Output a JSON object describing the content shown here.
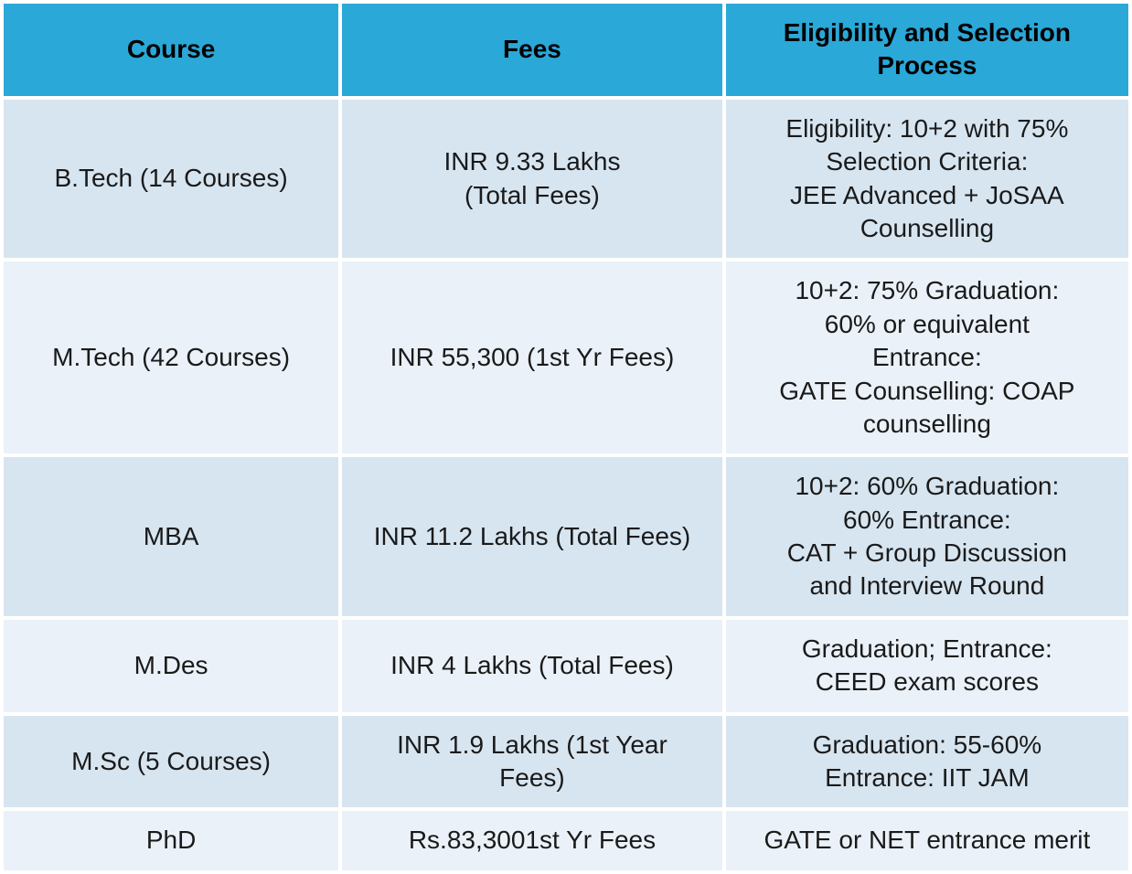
{
  "table": {
    "header_bg": "#2aa8d8",
    "row_even_bg": "#d7e5f0",
    "row_odd_bg": "#eaf1f8",
    "border_color": "#ffffff",
    "font_family": "Arial",
    "header_fontsize": 28,
    "cell_fontsize": 28,
    "columns": [
      {
        "key": "course",
        "label": "Course",
        "width_pct": 30
      },
      {
        "key": "fees",
        "label": "Fees",
        "width_pct": 34
      },
      {
        "key": "eligibility",
        "label": "Eligibility and Selection Process",
        "width_pct": 36
      }
    ],
    "rows": [
      {
        "course": "B.Tech (14 Courses)",
        "fees": "INR 9.33 Lakhs\n(Total Fees)",
        "eligibility": "Eligibility: 10+2 with 75%\nSelection Criteria:\nJEE Advanced + JoSAA\nCounselling"
      },
      {
        "course": "M.Tech (42 Courses)",
        "fees": "INR 55,300 (1st Yr Fees)",
        "eligibility": "10+2: 75% Graduation:\n60% or equivalent\nEntrance:\nGATE Counselling: COAP\ncounselling"
      },
      {
        "course": "MBA",
        "fees": "INR 11.2 Lakhs (Total Fees)",
        "eligibility": "10+2: 60% Graduation:\n60% Entrance:\nCAT + Group Discussion\nand Interview Round"
      },
      {
        "course": "M.Des",
        "fees": "INR 4 Lakhs (Total Fees)",
        "eligibility": "Graduation; Entrance:\nCEED exam scores"
      },
      {
        "course": "M.Sc (5 Courses)",
        "fees": "INR 1.9 Lakhs (1st Year\nFees)",
        "eligibility": "Graduation: 55-60%\nEntrance: IIT JAM"
      },
      {
        "course": "PhD",
        "fees": "Rs.83,3001st Yr Fees",
        "eligibility": "GATE or NET entrance merit"
      }
    ]
  }
}
